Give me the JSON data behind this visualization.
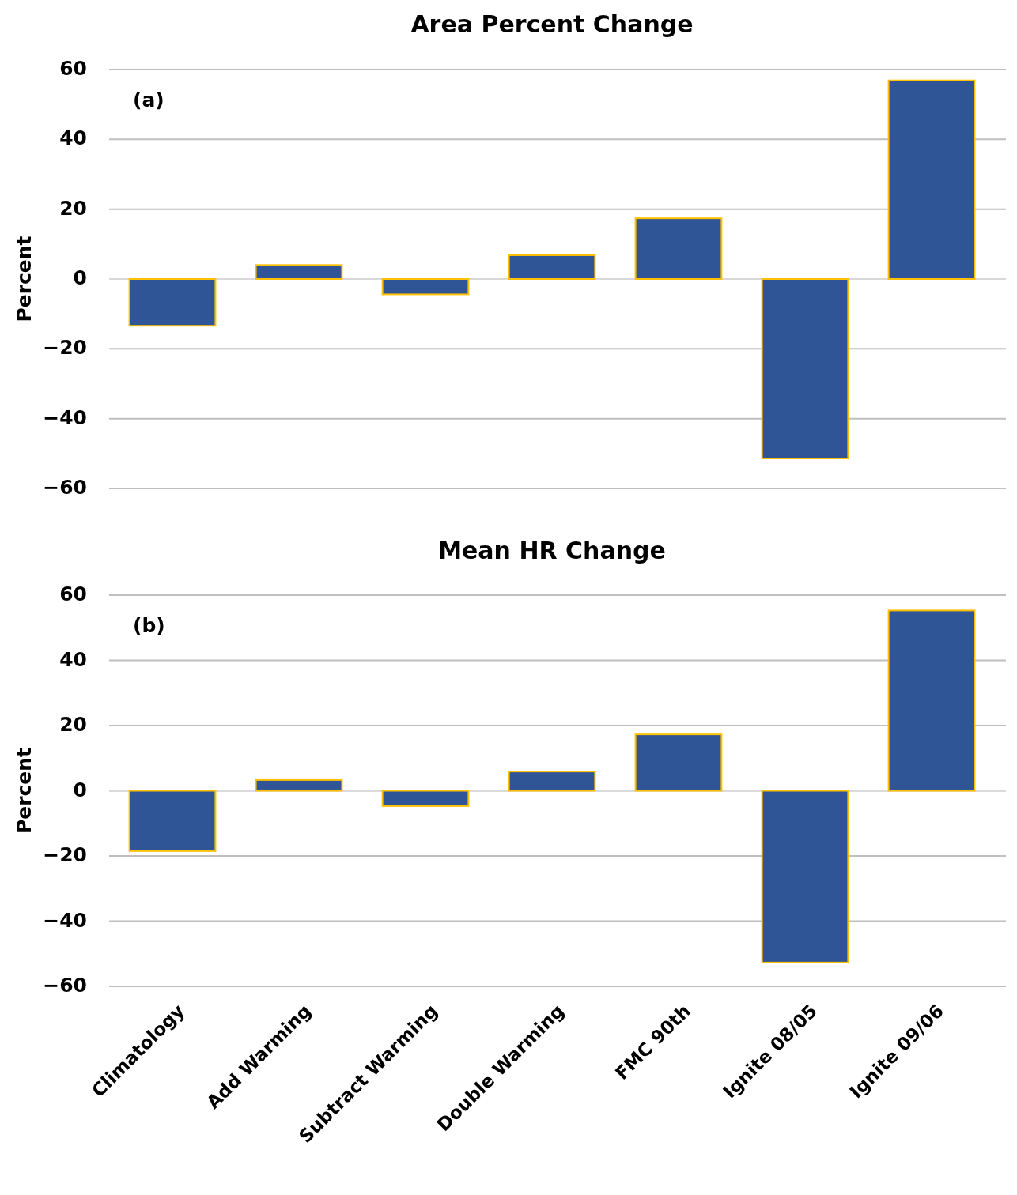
{
  "chart_data": [
    {
      "type": "bar",
      "title": "Area Percent Change",
      "ylabel": "Percent",
      "categories": [
        null,
        null,
        null,
        null,
        null,
        null,
        null
      ],
      "values": [
        -13.4,
        4.0,
        -4.4,
        6.8,
        17.4,
        -51.4,
        56.9
      ],
      "color": "#2f5597",
      "ylim": [
        -60,
        60
      ],
      "yticks": [
        {
          "value": -60,
          "label": "−60"
        },
        {
          "value": -40,
          "label": "−40"
        },
        {
          "value": -20,
          "label": "−20"
        },
        0,
        20,
        40,
        60
      ],
      "grid": "y",
      "tick_labels": "y",
      "annotations": [
        "(a)"
      ]
    },
    {
      "type": "bar",
      "title": "Mean HR Change",
      "ylabel": "Percent",
      "categories": [
        "Climatology",
        "Add Warming",
        "Subtract Warming",
        "Double Warming",
        "FMC 90th",
        "Ignite 08/05",
        "Ignite 09/06"
      ],
      "values": [
        -18.5,
        3.3,
        -4.7,
        5.9,
        17.3,
        -52.7,
        55.3
      ],
      "color": "#2f5597",
      "ylim": [
        -60,
        60
      ],
      "yticks": [
        {
          "value": -60,
          "label": "−60"
        },
        {
          "value": -40,
          "label": "−40"
        },
        {
          "value": -20,
          "label": "−20"
        },
        0,
        20,
        40,
        60
      ],
      "grid": "y",
      "annotations": [
        "(b)"
      ]
    }
  ]
}
